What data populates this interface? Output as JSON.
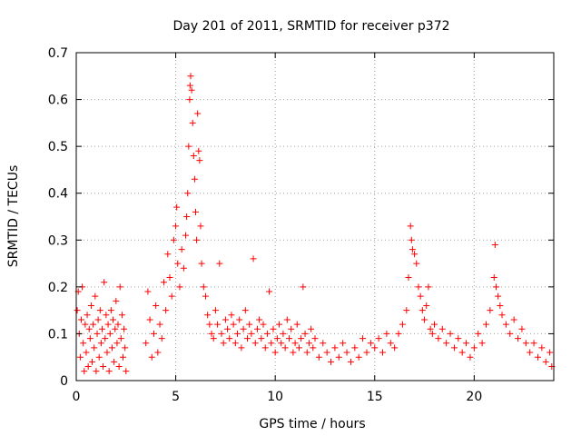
{
  "chart_data": {
    "type": "scatter",
    "title": "Day 201 of 2011, SRMTID for receiver p372",
    "xlabel": "GPS time / hours",
    "ylabel": "SRMTID / TECUs",
    "xlim": [
      0,
      24
    ],
    "ylim": [
      0,
      0.7
    ],
    "x_ticks": [
      0,
      5,
      10,
      15,
      20
    ],
    "x_tick_labels": [
      "0",
      "5",
      "10",
      "15",
      "20"
    ],
    "y_ticks": [
      0,
      0.1,
      0.2,
      0.3,
      0.4,
      0.5,
      0.6,
      0.7
    ],
    "y_tick_labels": [
      "0",
      "0.1",
      "0.2",
      "0.3",
      "0.4",
      "0.5",
      "0.6",
      "0.7"
    ],
    "grid": true,
    "marker": "plus",
    "color": "#ff0000",
    "series": [
      {
        "name": "SRMTID",
        "points": [
          [
            0.05,
            0.15
          ],
          [
            0.1,
            0.19
          ],
          [
            0.15,
            0.1
          ],
          [
            0.2,
            0.05
          ],
          [
            0.25,
            0.13
          ],
          [
            0.3,
            0.2
          ],
          [
            0.35,
            0.08
          ],
          [
            0.4,
            0.02
          ],
          [
            0.45,
            0.12
          ],
          [
            0.5,
            0.06
          ],
          [
            0.55,
            0.14
          ],
          [
            0.6,
            0.03
          ],
          [
            0.65,
            0.11
          ],
          [
            0.7,
            0.09
          ],
          [
            0.75,
            0.16
          ],
          [
            0.8,
            0.04
          ],
          [
            0.85,
            0.12
          ],
          [
            0.9,
            0.07
          ],
          [
            0.95,
            0.18
          ],
          [
            1.0,
            0.02
          ],
          [
            1.05,
            0.1
          ],
          [
            1.1,
            0.13
          ],
          [
            1.15,
            0.05
          ],
          [
            1.2,
            0.15
          ],
          [
            1.25,
            0.08
          ],
          [
            1.3,
            0.11
          ],
          [
            1.35,
            0.03
          ],
          [
            1.4,
            0.21
          ],
          [
            1.45,
            0.09
          ],
          [
            1.5,
            0.14
          ],
          [
            1.55,
            0.06
          ],
          [
            1.6,
            0.12
          ],
          [
            1.65,
            0.02
          ],
          [
            1.7,
            0.1
          ],
          [
            1.75,
            0.15
          ],
          [
            1.8,
            0.07
          ],
          [
            1.85,
            0.13
          ],
          [
            1.9,
            0.04
          ],
          [
            1.95,
            0.11
          ],
          [
            2.0,
            0.17
          ],
          [
            2.05,
            0.08
          ],
          [
            2.1,
            0.12
          ],
          [
            2.15,
            0.03
          ],
          [
            2.2,
            0.2
          ],
          [
            2.25,
            0.09
          ],
          [
            2.3,
            0.14
          ],
          [
            2.35,
            0.05
          ],
          [
            2.4,
            0.11
          ],
          [
            2.45,
            0.07
          ],
          [
            2.5,
            0.02
          ],
          [
            3.5,
            0.08
          ],
          [
            3.6,
            0.19
          ],
          [
            3.7,
            0.13
          ],
          [
            3.8,
            0.05
          ],
          [
            3.9,
            0.1
          ],
          [
            4.0,
            0.16
          ],
          [
            4.1,
            0.06
          ],
          [
            4.2,
            0.12
          ],
          [
            4.3,
            0.09
          ],
          [
            4.4,
            0.21
          ],
          [
            4.5,
            0.15
          ],
          [
            4.6,
            0.27
          ],
          [
            4.7,
            0.22
          ],
          [
            4.8,
            0.18
          ],
          [
            4.9,
            0.3
          ],
          [
            5.0,
            0.33
          ],
          [
            5.05,
            0.37
          ],
          [
            5.1,
            0.25
          ],
          [
            5.2,
            0.2
          ],
          [
            5.3,
            0.28
          ],
          [
            5.4,
            0.24
          ],
          [
            5.5,
            0.31
          ],
          [
            5.55,
            0.35
          ],
          [
            5.6,
            0.4
          ],
          [
            5.65,
            0.5
          ],
          [
            5.7,
            0.6
          ],
          [
            5.72,
            0.63
          ],
          [
            5.75,
            0.65
          ],
          [
            5.8,
            0.62
          ],
          [
            5.85,
            0.55
          ],
          [
            5.9,
            0.48
          ],
          [
            5.95,
            0.43
          ],
          [
            6.0,
            0.36
          ],
          [
            6.05,
            0.3
          ],
          [
            6.1,
            0.57
          ],
          [
            6.15,
            0.49
          ],
          [
            6.2,
            0.47
          ],
          [
            6.25,
            0.33
          ],
          [
            6.3,
            0.25
          ],
          [
            6.4,
            0.2
          ],
          [
            6.5,
            0.18
          ],
          [
            6.6,
            0.14
          ],
          [
            6.7,
            0.12
          ],
          [
            6.8,
            0.1
          ],
          [
            6.9,
            0.09
          ],
          [
            7.0,
            0.15
          ],
          [
            7.1,
            0.12
          ],
          [
            7.2,
            0.25
          ],
          [
            7.3,
            0.1
          ],
          [
            7.4,
            0.08
          ],
          [
            7.5,
            0.13
          ],
          [
            7.6,
            0.11
          ],
          [
            7.7,
            0.09
          ],
          [
            7.8,
            0.14
          ],
          [
            7.9,
            0.12
          ],
          [
            8.0,
            0.08
          ],
          [
            8.1,
            0.1
          ],
          [
            8.2,
            0.13
          ],
          [
            8.3,
            0.07
          ],
          [
            8.4,
            0.11
          ],
          [
            8.5,
            0.15
          ],
          [
            8.6,
            0.09
          ],
          [
            8.7,
            0.12
          ],
          [
            8.8,
            0.1
          ],
          [
            8.9,
            0.26
          ],
          [
            9.0,
            0.08
          ],
          [
            9.1,
            0.11
          ],
          [
            9.2,
            0.13
          ],
          [
            9.3,
            0.09
          ],
          [
            9.4,
            0.12
          ],
          [
            9.5,
            0.07
          ],
          [
            9.6,
            0.1
          ],
          [
            9.7,
            0.19
          ],
          [
            9.8,
            0.08
          ],
          [
            9.9,
            0.11
          ],
          [
            10.0,
            0.06
          ],
          [
            10.1,
            0.09
          ],
          [
            10.2,
            0.12
          ],
          [
            10.3,
            0.08
          ],
          [
            10.4,
            0.1
          ],
          [
            10.5,
            0.07
          ],
          [
            10.6,
            0.13
          ],
          [
            10.7,
            0.09
          ],
          [
            10.8,
            0.11
          ],
          [
            10.9,
            0.06
          ],
          [
            11.0,
            0.08
          ],
          [
            11.1,
            0.12
          ],
          [
            11.2,
            0.07
          ],
          [
            11.3,
            0.09
          ],
          [
            11.4,
            0.2
          ],
          [
            11.5,
            0.1
          ],
          [
            11.6,
            0.06
          ],
          [
            11.7,
            0.08
          ],
          [
            11.8,
            0.11
          ],
          [
            11.9,
            0.07
          ],
          [
            12.0,
            0.09
          ],
          [
            12.2,
            0.05
          ],
          [
            12.4,
            0.08
          ],
          [
            12.6,
            0.06
          ],
          [
            12.8,
            0.04
          ],
          [
            13.0,
            0.07
          ],
          [
            13.2,
            0.05
          ],
          [
            13.4,
            0.08
          ],
          [
            13.6,
            0.06
          ],
          [
            13.8,
            0.04
          ],
          [
            14.0,
            0.07
          ],
          [
            14.2,
            0.05
          ],
          [
            14.4,
            0.09
          ],
          [
            14.6,
            0.06
          ],
          [
            14.8,
            0.08
          ],
          [
            15.0,
            0.07
          ],
          [
            15.2,
            0.09
          ],
          [
            15.4,
            0.06
          ],
          [
            15.6,
            0.1
          ],
          [
            15.8,
            0.08
          ],
          [
            16.0,
            0.07
          ],
          [
            16.2,
            0.1
          ],
          [
            16.4,
            0.12
          ],
          [
            16.6,
            0.15
          ],
          [
            16.7,
            0.22
          ],
          [
            16.8,
            0.33
          ],
          [
            16.85,
            0.3
          ],
          [
            16.9,
            0.28
          ],
          [
            17.0,
            0.27
          ],
          [
            17.1,
            0.25
          ],
          [
            17.2,
            0.2
          ],
          [
            17.3,
            0.18
          ],
          [
            17.4,
            0.15
          ],
          [
            17.5,
            0.13
          ],
          [
            17.6,
            0.16
          ],
          [
            17.7,
            0.2
          ],
          [
            17.8,
            0.11
          ],
          [
            17.9,
            0.1
          ],
          [
            18.0,
            0.12
          ],
          [
            18.2,
            0.09
          ],
          [
            18.4,
            0.11
          ],
          [
            18.6,
            0.08
          ],
          [
            18.8,
            0.1
          ],
          [
            19.0,
            0.07
          ],
          [
            19.2,
            0.09
          ],
          [
            19.4,
            0.06
          ],
          [
            19.6,
            0.08
          ],
          [
            19.8,
            0.05
          ],
          [
            20.0,
            0.07
          ],
          [
            20.2,
            0.1
          ],
          [
            20.4,
            0.08
          ],
          [
            20.6,
            0.12
          ],
          [
            20.8,
            0.15
          ],
          [
            21.0,
            0.22
          ],
          [
            21.05,
            0.29
          ],
          [
            21.1,
            0.2
          ],
          [
            21.2,
            0.18
          ],
          [
            21.3,
            0.16
          ],
          [
            21.4,
            0.14
          ],
          [
            21.6,
            0.12
          ],
          [
            21.8,
            0.1
          ],
          [
            22.0,
            0.13
          ],
          [
            22.2,
            0.09
          ],
          [
            22.4,
            0.11
          ],
          [
            22.6,
            0.08
          ],
          [
            22.8,
            0.06
          ],
          [
            23.0,
            0.08
          ],
          [
            23.2,
            0.05
          ],
          [
            23.4,
            0.07
          ],
          [
            23.6,
            0.04
          ],
          [
            23.8,
            0.06
          ],
          [
            23.9,
            0.03
          ]
        ]
      }
    ]
  }
}
